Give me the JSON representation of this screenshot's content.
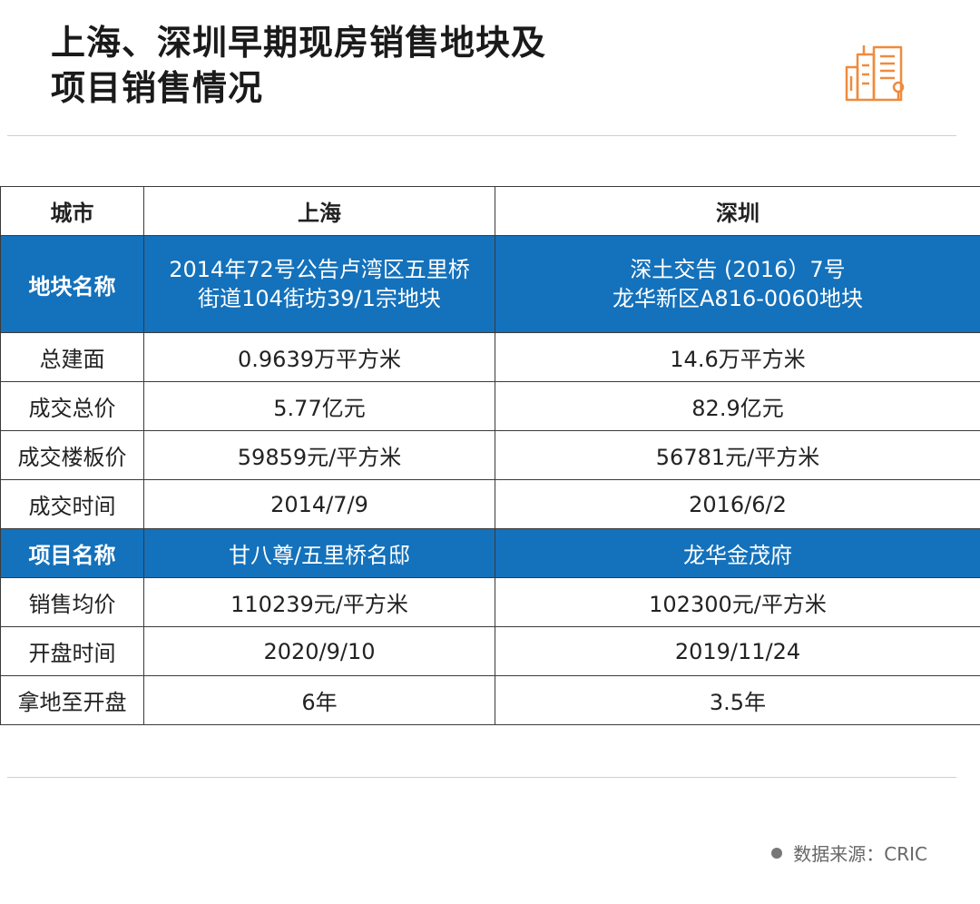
{
  "header": {
    "title_line1": "上海、深圳早期现房销售地块及",
    "title_line2": "项目销售情况",
    "logo_icon": "buildings-icon",
    "logo_color": "#f08a3c"
  },
  "table": {
    "header": [
      "城市",
      "上海",
      "深圳"
    ],
    "rows": [
      {
        "label": "地块名称",
        "sh": [
          "2014年72号公告卢湾区五里桥",
          "街道104街坊39/1宗地块"
        ],
        "sz": [
          "深土交告 (2016）7号",
          "龙华新区A816-0060地块"
        ],
        "highlight": true
      },
      {
        "label": "总建面",
        "sh": "0.9639万平方米",
        "sz": "14.6万平方米"
      },
      {
        "label": "成交总价",
        "sh": "5.77亿元",
        "sz": "82.9亿元"
      },
      {
        "label": "成交楼板价",
        "sh": "59859元/平方米",
        "sz": "56781元/平方米"
      },
      {
        "label": "成交时间",
        "sh": "2014/7/9",
        "sz": "2016/6/2"
      },
      {
        "label": "项目名称",
        "sh": "甘八尊/五里桥名邸",
        "sz": "龙华金茂府",
        "highlight": true
      },
      {
        "label": "销售均价",
        "sh": "110239元/平方米",
        "sz": "102300元/平方米"
      },
      {
        "label": "开盘时间",
        "sh": "2020/9/10",
        "sz": "2019/11/24"
      },
      {
        "label": "拿地至开盘",
        "sh": "6年",
        "sz": "3.5年"
      }
    ],
    "highlight_color": "#1471bb"
  },
  "footer": {
    "source": "数据来源：CRIC"
  }
}
